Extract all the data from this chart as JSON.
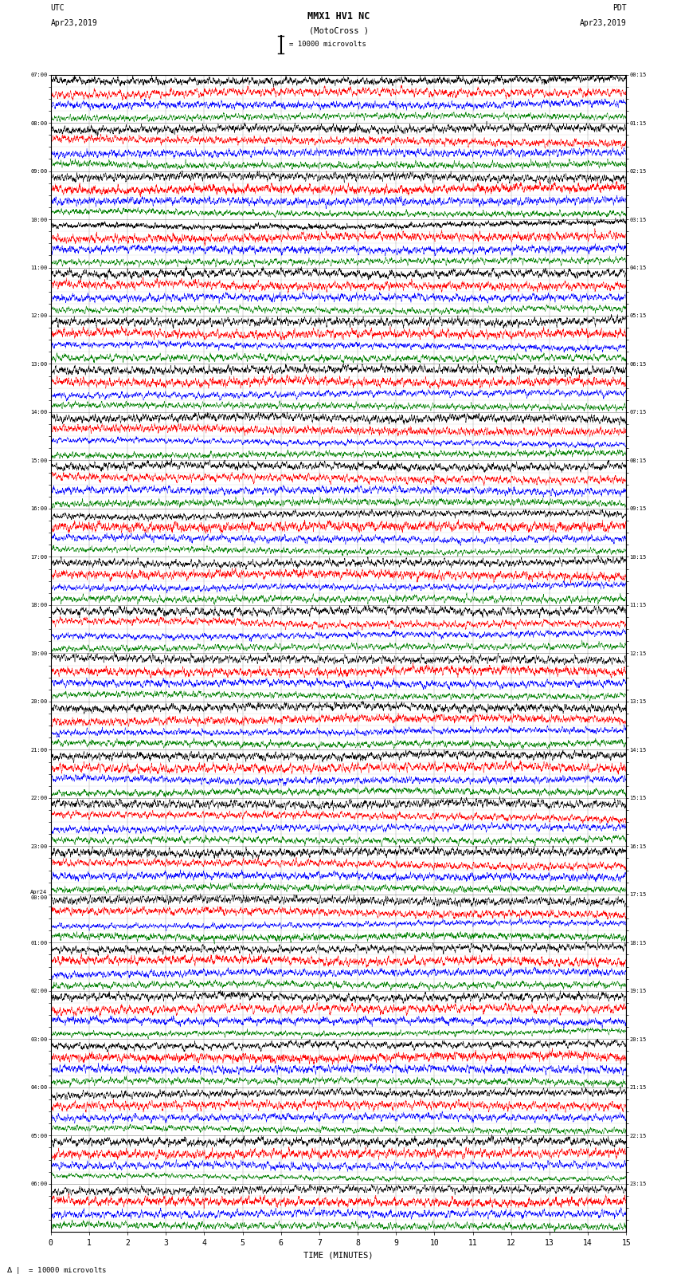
{
  "title": "MMX1 HV1 NC",
  "subtitle": "(MotoCross )",
  "scale_label": "= 10000 microvolts",
  "left_label": "UTC",
  "left_date": "Apr23,2019",
  "right_label": "PDT",
  "right_date": "Apr23,2019",
  "xlabel": "TIME (MINUTES)",
  "bottom_label": "= 10000 microvolts",
  "figsize": [
    8.5,
    16.13
  ],
  "dpi": 100,
  "utc_times": [
    "07:00",
    "",
    "",
    "",
    "08:00",
    "",
    "",
    "",
    "09:00",
    "",
    "",
    "",
    "10:00",
    "",
    "",
    "",
    "11:00",
    "",
    "",
    "",
    "12:00",
    "",
    "",
    "",
    "13:00",
    "",
    "",
    "",
    "14:00",
    "",
    "",
    "",
    "15:00",
    "",
    "",
    "",
    "16:00",
    "",
    "",
    "",
    "17:00",
    "",
    "",
    "",
    "18:00",
    "",
    "",
    "",
    "19:00",
    "",
    "",
    "",
    "20:00",
    "",
    "",
    "",
    "21:00",
    "",
    "",
    "",
    "22:00",
    "",
    "",
    "",
    "23:00",
    "",
    "",
    "",
    "Apr24\n00:00",
    "",
    "",
    "",
    "01:00",
    "",
    "",
    "",
    "02:00",
    "",
    "",
    "",
    "03:00",
    "",
    "",
    "",
    "04:00",
    "",
    "",
    "",
    "05:00",
    "",
    "",
    "",
    "06:00",
    "",
    "",
    ""
  ],
  "pdt_times": [
    "00:15",
    "",
    "",
    "",
    "01:15",
    "",
    "",
    "",
    "02:15",
    "",
    "",
    "",
    "03:15",
    "",
    "",
    "",
    "04:15",
    "",
    "",
    "",
    "05:15",
    "",
    "",
    "",
    "06:15",
    "",
    "",
    "",
    "07:15",
    "",
    "",
    "",
    "08:15",
    "",
    "",
    "",
    "09:15",
    "",
    "",
    "",
    "10:15",
    "",
    "",
    "",
    "11:15",
    "",
    "",
    "",
    "12:15",
    "",
    "",
    "",
    "13:15",
    "",
    "",
    "",
    "14:15",
    "",
    "",
    "",
    "15:15",
    "",
    "",
    "",
    "16:15",
    "",
    "",
    "",
    "17:15",
    "",
    "",
    "",
    "18:15",
    "",
    "",
    "",
    "19:15",
    "",
    "",
    "",
    "20:15",
    "",
    "",
    "",
    "21:15",
    "",
    "",
    "",
    "22:15",
    "",
    "",
    "",
    "23:15",
    "",
    "",
    ""
  ],
  "trace_colors": [
    "black",
    "red",
    "blue",
    "green"
  ],
  "n_rows": 96,
  "xmin": 0,
  "xmax": 15
}
